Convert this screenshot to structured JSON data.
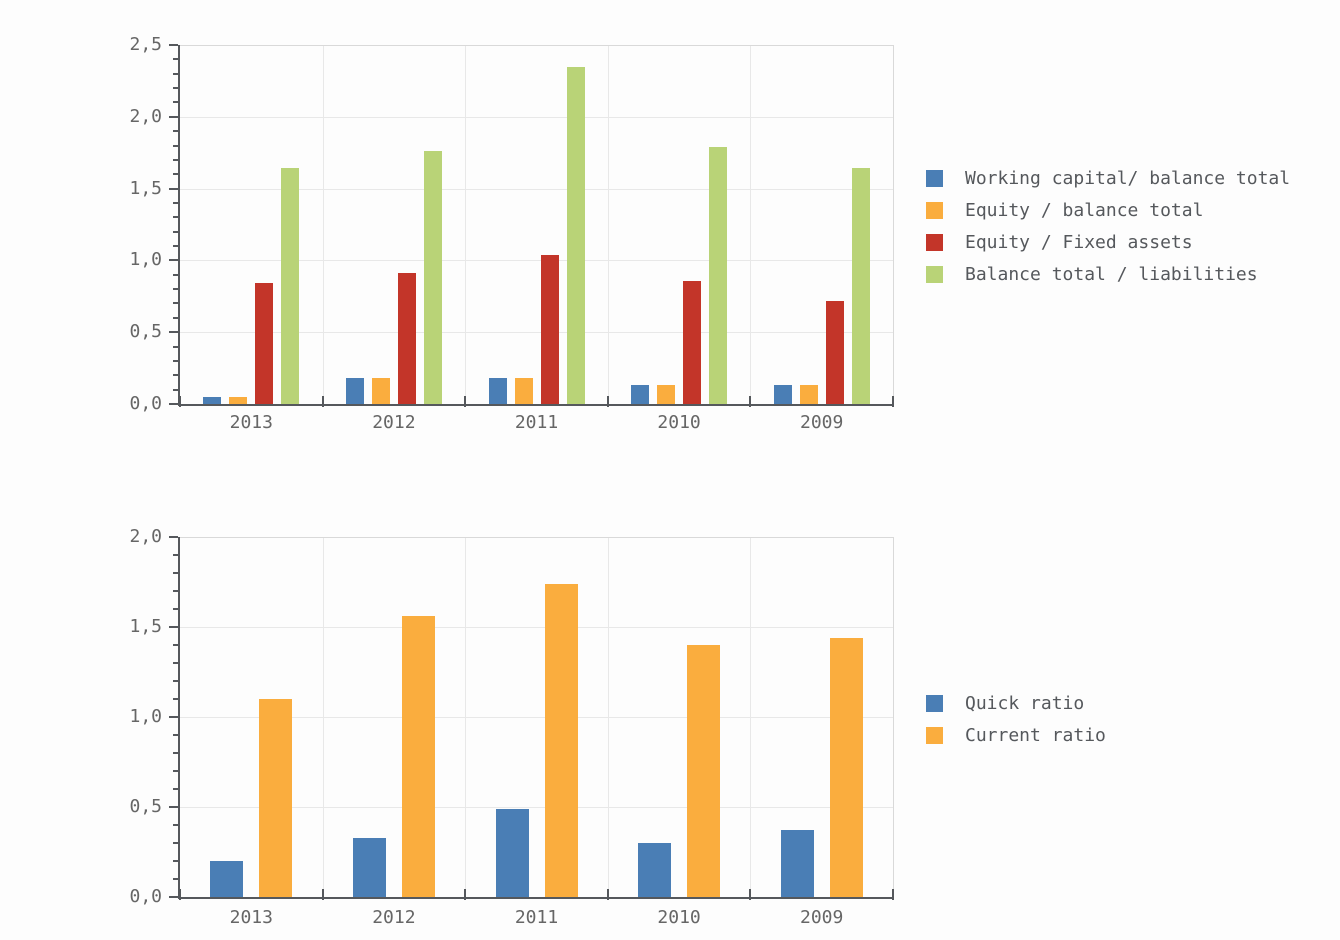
{
  "page": {
    "background": "#fdfdfd"
  },
  "palette": {
    "axis": "#55585c",
    "grid": "#e8e8e8",
    "plot_border": "#d9d9d9",
    "tick_label": "#666666",
    "legend_text": "#55585c"
  },
  "chart_data": [
    {
      "type": "bar",
      "title": "",
      "xlabel": "",
      "ylabel": "",
      "categories": [
        "2013",
        "2012",
        "2011",
        "2010",
        "2009"
      ],
      "series": [
        {
          "name": "Working capital/ balance total",
          "color": "#4a7eb5",
          "values": [
            0.05,
            0.18,
            0.18,
            0.13,
            0.13
          ]
        },
        {
          "name": "Equity / balance total",
          "color": "#faad3e",
          "values": [
            0.05,
            0.18,
            0.18,
            0.13,
            0.13
          ]
        },
        {
          "name": "Equity / Fixed assets",
          "color": "#c33529",
          "values": [
            0.84,
            0.91,
            1.04,
            0.86,
            0.72
          ]
        },
        {
          "name": "Balance total / liabilities",
          "color": "#b9d377",
          "values": [
            1.64,
            1.76,
            2.35,
            1.79,
            1.64
          ]
        }
      ],
      "ylim": [
        0,
        2.5
      ],
      "yticks": [
        0,
        0.5,
        1.0,
        1.5,
        2.0,
        2.5
      ],
      "ytick_labels": [
        "0,0",
        "0,5",
        "1,0",
        "1,5",
        "2,0",
        "2,5"
      ],
      "minor_tick_step": 0.1,
      "decimal_separator": ",",
      "grid": true,
      "legend_position": "right"
    },
    {
      "type": "bar",
      "title": "",
      "xlabel": "",
      "ylabel": "",
      "categories": [
        "2013",
        "2012",
        "2011",
        "2010",
        "2009"
      ],
      "series": [
        {
          "name": "Quick ratio",
          "color": "#4a7eb5",
          "values": [
            0.2,
            0.33,
            0.49,
            0.3,
            0.37
          ]
        },
        {
          "name": "Current ratio",
          "color": "#faad3e",
          "values": [
            1.1,
            1.56,
            1.74,
            1.4,
            1.44
          ]
        }
      ],
      "ylim": [
        0,
        2.0
      ],
      "yticks": [
        0,
        0.5,
        1.0,
        1.5,
        2.0
      ],
      "ytick_labels": [
        "0,0",
        "0,5",
        "1,0",
        "1,5",
        "2,0"
      ],
      "minor_tick_step": 0.1,
      "decimal_separator": ",",
      "grid": true,
      "legend_position": "right"
    }
  ]
}
